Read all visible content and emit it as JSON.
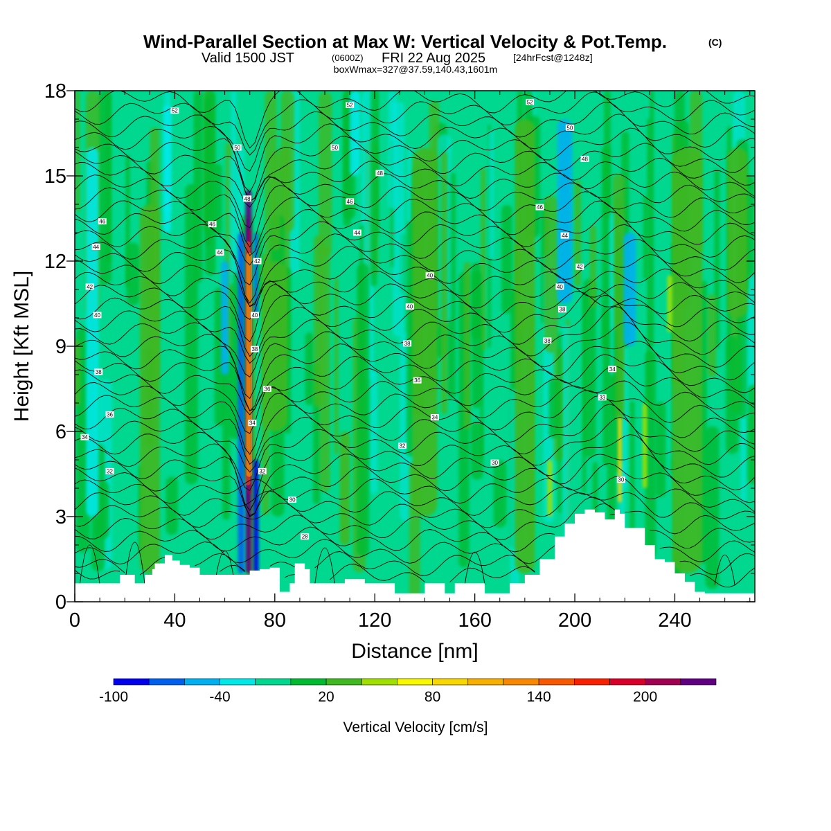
{
  "chart_data": {
    "type": "heatmap",
    "title": "Wind-Parallel Section at Max W: Vertical Velocity & Pot.Temp.",
    "title_mark": "(C)",
    "subtitle": {
      "prefix": "Valid 1500 JST",
      "utc": "(0600Z)",
      "date": "FRI 22 Aug 2025",
      "forecast": "[24hrFcst@1248z]"
    },
    "info": "boxWmax=327@37.59,140.43,1601m",
    "xlabel": "Distance [nm]",
    "ylabel": "Height [Kft MSL]",
    "xlim": [
      0,
      272
    ],
    "ylim": [
      0,
      18
    ],
    "x_ticks": [
      "0",
      "40",
      "80",
      "120",
      "160",
      "200",
      "240"
    ],
    "y_ticks": [
      "0",
      "3",
      "6",
      "9",
      "12",
      "15",
      "18"
    ],
    "colorbar": {
      "label": "Vertical Velocity [cm/s]",
      "tick_labels": [
        "-100",
        "-40",
        "20",
        "80",
        "140",
        "200"
      ],
      "tick_values": [
        -100,
        -40,
        20,
        80,
        140,
        200
      ],
      "bin_min": -100,
      "bin_width": 20,
      "colors": [
        "#0000ee",
        "#0060ee",
        "#00b0f0",
        "#00e8e8",
        "#00d890",
        "#00bb30",
        "#40b820",
        "#a0e000",
        "#f8f800",
        "#f8d800",
        "#f8b000",
        "#f88800",
        "#f85800",
        "#f82000",
        "#d80028",
        "#a00050",
        "#600080"
      ]
    },
    "background_color": "#00d890",
    "terrain_profile": [
      {
        "x": 0,
        "h": 0.65
      },
      {
        "x": 16,
        "h": 0.65
      },
      {
        "x": 18,
        "h": 0.95
      },
      {
        "x": 22,
        "h": 0.95
      },
      {
        "x": 24,
        "h": 0.65
      },
      {
        "x": 28,
        "h": 0.95
      },
      {
        "x": 31,
        "h": 1.15
      },
      {
        "x": 32,
        "h": 1.35
      },
      {
        "x": 36,
        "h": 1.65
      },
      {
        "x": 39,
        "h": 1.45
      },
      {
        "x": 42,
        "h": 1.3
      },
      {
        "x": 46,
        "h": 1.2
      },
      {
        "x": 50,
        "h": 0.95
      },
      {
        "x": 60,
        "h": 0.95
      },
      {
        "x": 66,
        "h": 0.95
      },
      {
        "x": 68,
        "h": 0.95
      },
      {
        "x": 70,
        "h": 1.1
      },
      {
        "x": 74,
        "h": 1.15
      },
      {
        "x": 78,
        "h": 1.2
      },
      {
        "x": 82,
        "h": 0.35
      },
      {
        "x": 86,
        "h": 0.65
      },
      {
        "x": 88,
        "h": 1.35
      },
      {
        "x": 92,
        "h": 1.15
      },
      {
        "x": 94,
        "h": 0.65
      },
      {
        "x": 100,
        "h": 0.65
      },
      {
        "x": 108,
        "h": 0.8
      },
      {
        "x": 116,
        "h": 0.65
      },
      {
        "x": 126,
        "h": 0.65
      },
      {
        "x": 128,
        "h": 0.3
      },
      {
        "x": 138,
        "h": 0.3
      },
      {
        "x": 140,
        "h": 0.65
      },
      {
        "x": 148,
        "h": 0.3
      },
      {
        "x": 152,
        "h": 0.65
      },
      {
        "x": 160,
        "h": 0.65
      },
      {
        "x": 164,
        "h": 0.3
      },
      {
        "x": 170,
        "h": 0.3
      },
      {
        "x": 174,
        "h": 0.65
      },
      {
        "x": 180,
        "h": 0.95
      },
      {
        "x": 186,
        "h": 1.5
      },
      {
        "x": 192,
        "h": 2.3
      },
      {
        "x": 196,
        "h": 2.75
      },
      {
        "x": 200,
        "h": 3.1
      },
      {
        "x": 204,
        "h": 3.25
      },
      {
        "x": 208,
        "h": 3.15
      },
      {
        "x": 212,
        "h": 2.9
      },
      {
        "x": 216,
        "h": 3.25
      },
      {
        "x": 218,
        "h": 3.1
      },
      {
        "x": 220,
        "h": 2.6
      },
      {
        "x": 224,
        "h": 2.6
      },
      {
        "x": 228,
        "h": 2.0
      },
      {
        "x": 232,
        "h": 1.5
      },
      {
        "x": 236,
        "h": 1.4
      },
      {
        "x": 240,
        "h": 1.0
      },
      {
        "x": 244,
        "h": 0.7
      },
      {
        "x": 248,
        "h": 0.35
      },
      {
        "x": 252,
        "h": 0.3
      },
      {
        "x": 272,
        "h": 0.3
      }
    ],
    "vertical_velocity_features": [
      {
        "x": 69.5,
        "y0": 1.0,
        "y1": 14.5,
        "w": 300,
        "width": 2.4
      },
      {
        "x": 66.5,
        "y0": 1.0,
        "y1": 13.0,
        "w": -70,
        "width": 2.5
      },
      {
        "x": 72.5,
        "y0": 1.0,
        "y1": 5.0,
        "w": -90,
        "width": 2.0
      },
      {
        "x": 72.5,
        "y0": 10.0,
        "y1": 13.0,
        "w": -80,
        "width": 1.5
      },
      {
        "x": 7,
        "y0": 3.0,
        "y1": 16.0,
        "w": -30,
        "width": 5.0
      },
      {
        "x": 37,
        "y0": 13.0,
        "y1": 17.5,
        "w": -35,
        "width": 3.0
      },
      {
        "x": 60,
        "y0": 8.0,
        "y1": 12.0,
        "w": -45,
        "width": 3.0
      },
      {
        "x": 112,
        "y0": 15.0,
        "y1": 18.0,
        "w": -40,
        "width": 4.0
      },
      {
        "x": 196,
        "y0": 10.5,
        "y1": 17.0,
        "w": -45,
        "width": 6.0
      },
      {
        "x": 222,
        "y0": 9.0,
        "y1": 13.0,
        "w": -50,
        "width": 5.0
      },
      {
        "x": 218,
        "y0": 3.5,
        "y1": 6.5,
        "w": 80,
        "width": 1.5
      },
      {
        "x": 228,
        "y0": 4.0,
        "y1": 7.0,
        "w": 50,
        "width": 1.8
      },
      {
        "x": 80,
        "y0": 6.0,
        "y1": 12.0,
        "w": 20,
        "width": 10.0
      },
      {
        "x": 180,
        "y0": 1.0,
        "y1": 17.0,
        "w": 20,
        "width": 8.0
      },
      {
        "x": 245,
        "y0": 1.0,
        "y1": 16.0,
        "w": 20,
        "width": 12.0
      },
      {
        "x": 140,
        "y0": 3.0,
        "y1": 16.0,
        "w": 20,
        "width": 10.0
      },
      {
        "x": 30,
        "y0": 1.0,
        "y1": 14.0,
        "w": 20,
        "width": 8.0
      },
      {
        "x": 265,
        "y0": 10.0,
        "y1": 16.0,
        "w": 20,
        "width": 8.0
      },
      {
        "x": 190,
        "y0": 3.0,
        "y1": 5.0,
        "w": 50,
        "width": 2.0
      },
      {
        "x": 238,
        "y0": 9.5,
        "y1": 11.5,
        "w": 40,
        "width": 2.0
      },
      {
        "x": 108,
        "y0": 2.0,
        "y1": 6.0,
        "w": 20,
        "width": 4.0
      }
    ],
    "potential_temperature_contours": [
      {
        "theta": 30,
        "base": 4.3,
        "label_x": 218.5,
        "label_y": 4.3
      },
      {
        "theta": 32,
        "base": 5.5,
        "label_x": 131,
        "label_y": 5.5
      },
      {
        "theta": 34,
        "base": 6.1,
        "label_x": 144,
        "label_y": 6.5
      },
      {
        "theta": 36,
        "base": 7.2,
        "label_x": 14,
        "label_y": 6.6
      },
      {
        "theta": 38,
        "base": 8.1,
        "label_x": 9.5,
        "label_y": 8.1
      },
      {
        "theta": 40,
        "base": 10.4,
        "label_x": 134,
        "label_y": 10.4
      },
      {
        "theta": 42,
        "base": 11.1,
        "label_x": 6,
        "label_y": 11.1
      },
      {
        "theta": 44,
        "base": 12.4,
        "label_x": 8.5,
        "label_y": 12.5
      },
      {
        "theta": 46,
        "base": 13.5,
        "label_x": 11,
        "label_y": 13.4
      },
      {
        "theta": 48,
        "base": 15.0,
        "label_x": 122,
        "label_y": 15.1
      },
      {
        "theta": 50,
        "base": 15.9,
        "label_x": 104,
        "label_y": 16.0
      },
      {
        "theta": 52,
        "base": 17.4,
        "label_x": 182,
        "label_y": 17.6
      }
    ],
    "contour_labels": [
      {
        "text": "52",
        "x": 40,
        "y": 17.3
      },
      {
        "text": "52",
        "x": 110,
        "y": 17.5
      },
      {
        "text": "52",
        "x": 182,
        "y": 17.6
      },
      {
        "text": "50",
        "x": 65,
        "y": 16.0
      },
      {
        "text": "50",
        "x": 104,
        "y": 16.0
      },
      {
        "text": "50",
        "x": 198,
        "y": 16.7
      },
      {
        "text": "48",
        "x": 122,
        "y": 15.1
      },
      {
        "text": "48",
        "x": 204,
        "y": 15.6
      },
      {
        "text": "48",
        "x": 69,
        "y": 14.2
      },
      {
        "text": "46",
        "x": 110,
        "y": 14.1
      },
      {
        "text": "46",
        "x": 186,
        "y": 13.9
      },
      {
        "text": "46",
        "x": 55,
        "y": 13.3
      },
      {
        "text": "46",
        "x": 11,
        "y": 13.4
      },
      {
        "text": "44",
        "x": 113,
        "y": 13.0
      },
      {
        "text": "44",
        "x": 196,
        "y": 12.9
      },
      {
        "text": "44",
        "x": 8.5,
        "y": 12.5
      },
      {
        "text": "44",
        "x": 58,
        "y": 12.3
      },
      {
        "text": "42",
        "x": 73,
        "y": 12.0
      },
      {
        "text": "42",
        "x": 202,
        "y": 11.8
      },
      {
        "text": "42",
        "x": 6,
        "y": 11.1
      },
      {
        "text": "40",
        "x": 142,
        "y": 11.5
      },
      {
        "text": "40",
        "x": 194,
        "y": 11.1
      },
      {
        "text": "40",
        "x": 134,
        "y": 10.4
      },
      {
        "text": "40",
        "x": 72,
        "y": 10.1
      },
      {
        "text": "40",
        "x": 9,
        "y": 10.1
      },
      {
        "text": "38",
        "x": 195,
        "y": 10.3
      },
      {
        "text": "38",
        "x": 189,
        "y": 9.2
      },
      {
        "text": "38",
        "x": 133,
        "y": 9.1
      },
      {
        "text": "38",
        "x": 72,
        "y": 8.9
      },
      {
        "text": "38",
        "x": 9.5,
        "y": 8.1
      },
      {
        "text": "36",
        "x": 77,
        "y": 7.5
      },
      {
        "text": "36",
        "x": 137,
        "y": 7.8
      },
      {
        "text": "36",
        "x": 14,
        "y": 6.6
      },
      {
        "text": "34",
        "x": 215,
        "y": 8.2
      },
      {
        "text": "34",
        "x": 71,
        "y": 6.3
      },
      {
        "text": "34",
        "x": 144,
        "y": 6.5
      },
      {
        "text": "34",
        "x": 4,
        "y": 5.8
      },
      {
        "text": "33",
        "x": 211,
        "y": 7.2
      },
      {
        "text": "32",
        "x": 131,
        "y": 5.5
      },
      {
        "text": "32",
        "x": 75,
        "y": 4.6
      },
      {
        "text": "32",
        "x": 14,
        "y": 4.6
      },
      {
        "text": "30",
        "x": 168,
        "y": 4.9
      },
      {
        "text": "30",
        "x": 218.5,
        "y": 4.3
      },
      {
        "text": "30",
        "x": 87,
        "y": 3.6
      },
      {
        "text": "28",
        "x": 92,
        "y": 2.3
      }
    ]
  }
}
